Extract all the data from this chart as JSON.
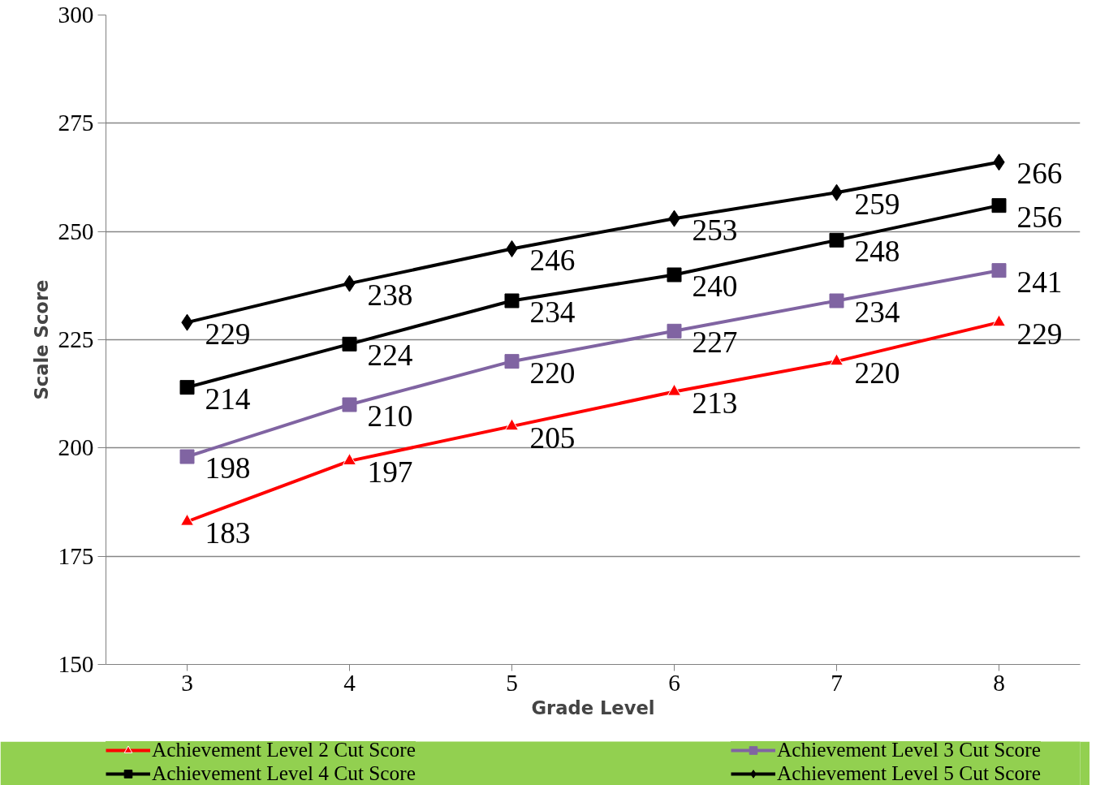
{
  "chart_data": {
    "type": "line",
    "xlabel": "Grade Level",
    "ylabel": "Scale Score",
    "categories": [
      "3",
      "4",
      "5",
      "6",
      "7",
      "8"
    ],
    "ylim": [
      150,
      300
    ],
    "yticks": [
      150,
      175,
      200,
      225,
      250,
      275,
      300
    ],
    "grid": "y",
    "legend": "bottom",
    "data_labels": true,
    "series": [
      {
        "name": "Achievement Level 2 Cut Score",
        "color": "#ff0000",
        "marker": "triangle",
        "values": [
          183,
          197,
          205,
          213,
          220,
          229
        ]
      },
      {
        "name": "Achievement Level 3 Cut Score",
        "color": "#8064a2",
        "marker": "square",
        "values": [
          198,
          210,
          220,
          227,
          234,
          241
        ]
      },
      {
        "name": "Achievement Level 4 Cut Score",
        "color": "#000000",
        "marker": "square",
        "values": [
          214,
          224,
          234,
          240,
          248,
          256
        ]
      },
      {
        "name": "Achievement Level 5 Cut Score",
        "color": "#000000",
        "marker": "diamond",
        "values": [
          229,
          238,
          246,
          253,
          259,
          266
        ]
      }
    ]
  }
}
